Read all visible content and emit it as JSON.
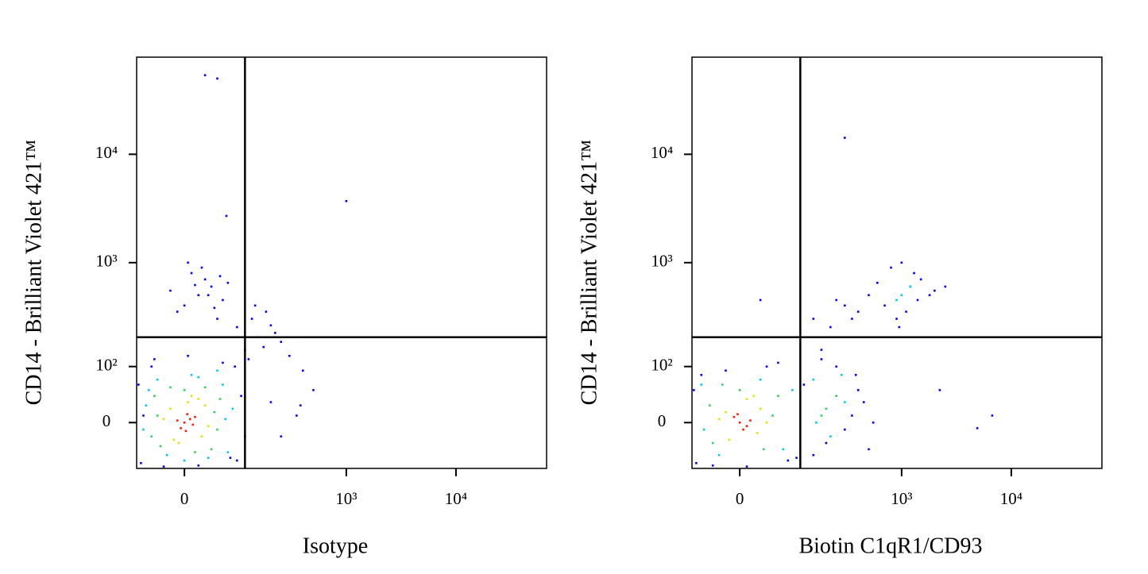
{
  "chart_data": [
    {
      "type": "scatter",
      "xlabel": "Isotype",
      "ylabel": "CD14 - Brilliant Violet 421™",
      "scale": "biexponential",
      "xlim": [
        -79,
        67000
      ],
      "ylim": [
        -76,
        78700
      ],
      "xticks": [
        0,
        {
          "value": 1000,
          "label": "10³"
        },
        {
          "value": 10000,
          "label": "10⁴"
        }
      ],
      "yticks": [
        0,
        {
          "value": 100,
          "label": "10²"
        },
        {
          "value": 1000,
          "label": "10³"
        },
        {
          "value": 10000,
          "label": "10⁴"
        }
      ],
      "gate": {
        "x": 110,
        "y": 200
      },
      "series": [
        {
          "color": "#0000ff",
          "x": [
            -70,
            -75,
            90,
            100,
            -50,
            60,
            -65,
            110,
            20,
            -30,
            75,
            -45,
            85,
            5,
            0,
            20,
            40,
            -10,
            60,
            30,
            10,
            50,
            -20,
            70,
            25,
            45,
            5,
            35,
            15,
            55,
            110,
            150,
            200,
            130,
            250,
            180,
            90,
            120,
            220,
            170,
            140,
            300,
            400,
            350,
            500,
            250,
            200,
            380,
            30,
            50,
            67,
            1000
          ],
          "y": [
            -65,
            60,
            -60,
            40,
            100,
            110,
            10,
            -20,
            -70,
            -72,
            -55,
            120,
            100,
            130,
            400,
            500,
            600,
            350,
            450,
            700,
            800,
            300,
            550,
            650,
            900,
            380,
            1000,
            500,
            620,
            750,
            150,
            200,
            260,
            300,
            180,
            350,
            250,
            120,
            220,
            160,
            400,
            130,
            90,
            10,
            50,
            -20,
            30,
            25,
            53600,
            50000,
            2700,
            3700
          ]
        },
        {
          "color": "#00c8ff",
          "x": [
            -55,
            60,
            70,
            -60,
            10,
            -25,
            65,
            80,
            -40,
            35,
            0,
            -65,
            20,
            50
          ],
          "y": [
            50,
            60,
            -45,
            25,
            80,
            -50,
            5,
            20,
            70,
            -55,
            -60,
            -10,
            75,
            90
          ]
        },
        {
          "color": "#33d060",
          "x": [
            -40,
            45,
            -35,
            50,
            0,
            -45,
            30,
            55,
            -20,
            15,
            40,
            -50
          ],
          "y": [
            10,
            15,
            -35,
            -10,
            50,
            40,
            55,
            35,
            55,
            -45,
            -40,
            -20
          ]
        },
        {
          "color": "#e8e000",
          "x": [
            -20,
            25,
            30,
            -15,
            5,
            -30,
            20,
            35,
            -8,
            10
          ],
          "y": [
            20,
            -20,
            25,
            -25,
            30,
            5,
            35,
            -5,
            -30,
            40
          ]
        },
        {
          "color": "#ff1a00",
          "x": [
            0,
            8,
            -5,
            12,
            4,
            -10,
            15,
            2
          ],
          "y": [
            0,
            5,
            -8,
            -3,
            12,
            3,
            8,
            -12
          ]
        }
      ]
    },
    {
      "type": "scatter",
      "xlabel": "Biotin C1qR1/CD93",
      "ylabel": "CD14 - Brilliant Violet 421™",
      "scale": "biexponential",
      "xlim": [
        -79,
        67000
      ],
      "ylim": [
        -76,
        78700
      ],
      "xticks": [
        0,
        {
          "value": 1000,
          "label": "10³"
        },
        {
          "value": 10000,
          "label": "10⁴"
        }
      ],
      "yticks": [
        0,
        {
          "value": 100,
          "label": "10²"
        },
        {
          "value": 1000,
          "label": "10³"
        },
        {
          "value": 10000,
          "label": "10⁴"
        }
      ],
      "gate": {
        "x": 110,
        "y": 200
      },
      "series": [
        {
          "color": "#0000ff",
          "x": [
            -70,
            -75,
            100,
            -60,
            40,
            -40,
            80,
            -20,
            60,
            10,
            120,
            200,
            350,
            400,
            250,
            150,
            300,
            450,
            500,
            180,
            380,
            550,
            700,
            900,
            1200,
            1500,
            800,
            1100,
            1800,
            1000,
            1400,
            2000,
            600,
            1300,
            2500,
            950,
            100,
            150,
            220,
            300,
            400,
            500,
            180,
            250,
            350,
            300,
            6700,
            4900,
            2230,
            30
          ],
          "y": [
            -65,
            50,
            -55,
            80,
            100,
            -70,
            -60,
            90,
            110,
            -72,
            60,
            -30,
            10,
            50,
            100,
            -50,
            -10,
            30,
            -40,
            120,
            80,
            0,
            400,
            300,
            600,
            700,
            900,
            350,
            500,
            1000,
            450,
            550,
            650,
            800,
            600,
            250,
            200,
            300,
            250,
            400,
            350,
            500,
            150,
            450,
            300,
            14200,
            10,
            -8,
            50,
            450
          ]
        },
        {
          "color": "#00c8ff",
          "x": [
            -60,
            70,
            -55,
            90,
            150,
            300,
            220,
            280,
            160,
            1000,
            1200,
            900,
            30,
            -30
          ],
          "y": [
            60,
            -40,
            -10,
            50,
            70,
            30,
            -20,
            80,
            0,
            500,
            600,
            450,
            70,
            -50
          ]
        },
        {
          "color": "#33d060",
          "x": [
            -45,
            50,
            -40,
            0,
            60,
            200,
            250,
            180,
            -25,
            35
          ],
          "y": [
            25,
            10,
            -30,
            50,
            40,
            20,
            40,
            10,
            60,
            -40
          ]
        },
        {
          "color": "#e8e000",
          "x": [
            -20,
            25,
            -30,
            30,
            10,
            -15,
            40,
            20
          ],
          "y": [
            15,
            -15,
            5,
            20,
            35,
            -25,
            0,
            40
          ]
        },
        {
          "color": "#ff1a00",
          "x": [
            0,
            -8,
            10,
            -3,
            15,
            5
          ],
          "y": [
            0,
            8,
            -5,
            12,
            3,
            -10
          ]
        }
      ]
    }
  ]
}
